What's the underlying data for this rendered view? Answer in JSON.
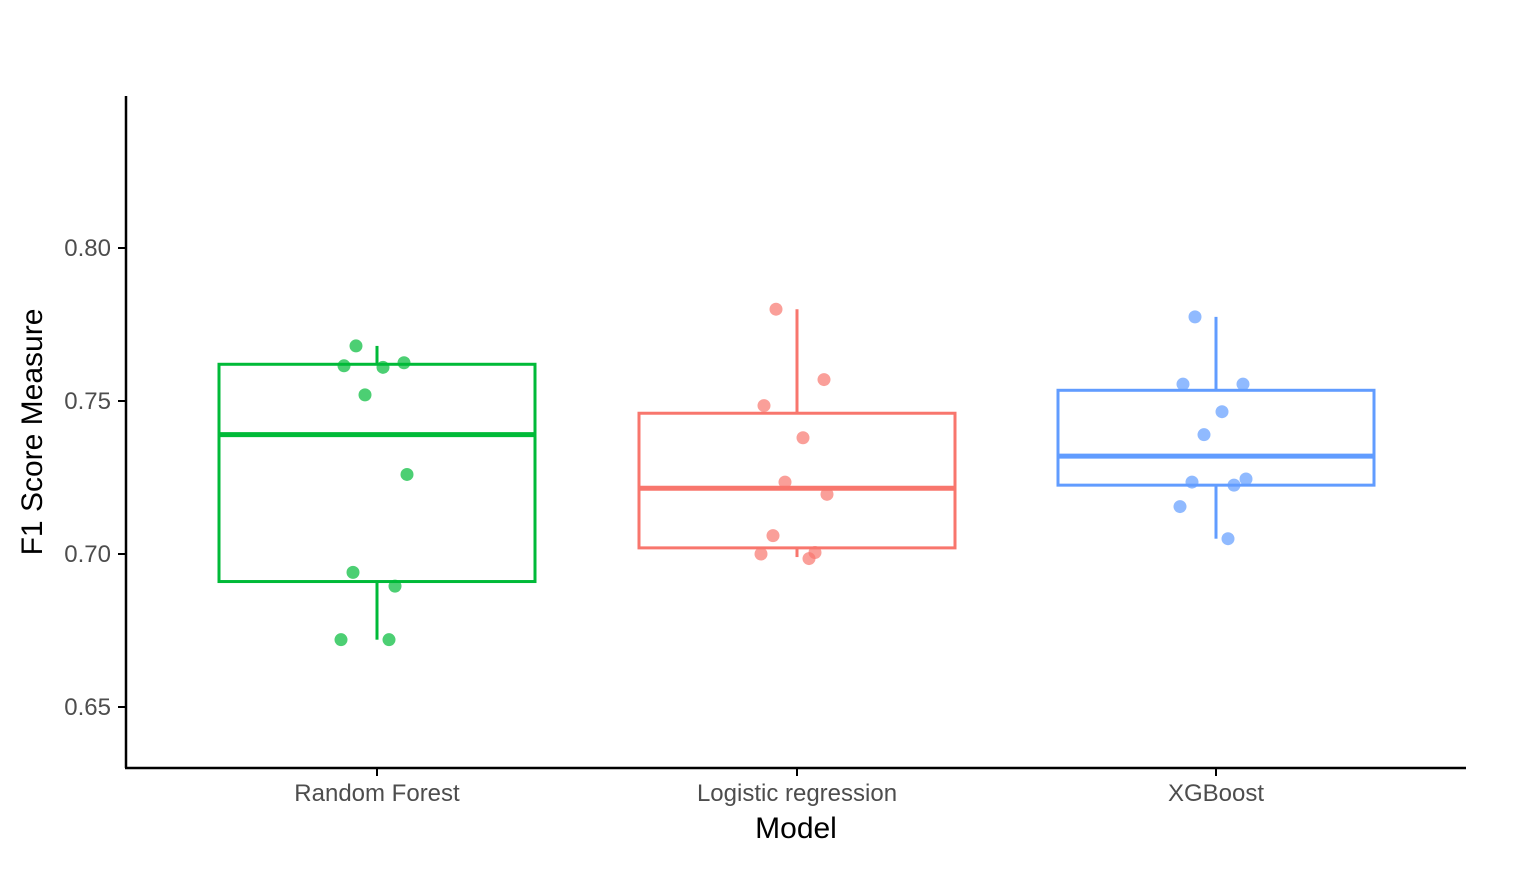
{
  "chart_data": {
    "type": "box",
    "xlabel": "Model",
    "ylabel": "F1 Score Measure",
    "ylim": [
      0.63,
      0.85
    ],
    "yticks": [
      "0.65",
      "0.70",
      "0.75",
      "0.80"
    ],
    "grid": false,
    "legend": "none",
    "categories": [
      "Random Forest",
      "Logistic regression",
      "XGBoost"
    ],
    "series": [
      {
        "category": "Random Forest",
        "color": "#00ba38",
        "box": {
          "q1": 0.691,
          "median": 0.739,
          "q3": 0.762,
          "whisker_low": 0.672,
          "whisker_high": 0.768
        },
        "points": [
          0.768,
          0.7625,
          0.7615,
          0.761,
          0.752,
          0.726,
          0.694,
          0.6895,
          0.672,
          0.672
        ]
      },
      {
        "category": "Logistic regression",
        "color": "#f8766d",
        "box": {
          "q1": 0.702,
          "median": 0.7215,
          "q3": 0.746,
          "whisker_low": 0.699,
          "whisker_high": 0.78
        },
        "points": [
          0.78,
          0.757,
          0.7485,
          0.738,
          0.7235,
          0.7195,
          0.706,
          0.7005,
          0.7,
          0.6985
        ]
      },
      {
        "category": "XGBoost",
        "color": "#619cff",
        "box": {
          "q1": 0.7225,
          "median": 0.732,
          "q3": 0.7535,
          "whisker_low": 0.705,
          "whisker_high": 0.7775
        },
        "points": [
          0.7775,
          0.7555,
          0.7555,
          0.7465,
          0.739,
          0.7245,
          0.7235,
          0.7225,
          0.7155,
          0.705
        ]
      }
    ]
  }
}
